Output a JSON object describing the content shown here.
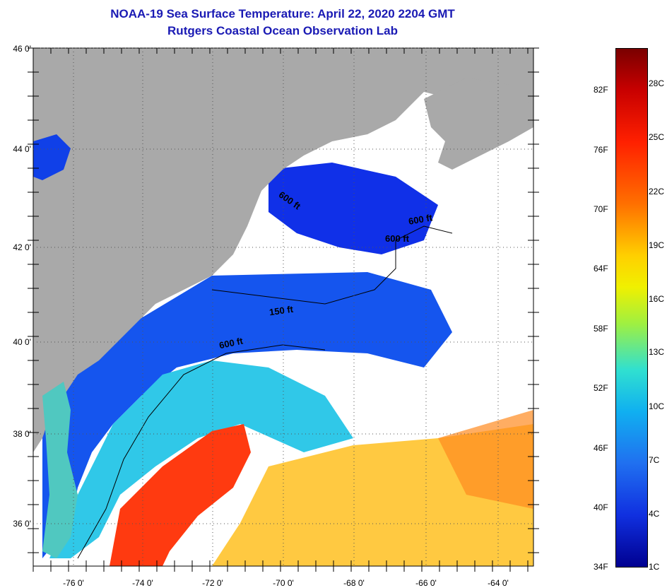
{
  "header": {
    "title": "NOAA-19 Sea Surface Temperature:  April 22, 2020 2204 GMT",
    "subtitle": "Rutgers Coastal Ocean Observation Lab"
  },
  "map": {
    "lat_labels": [
      "46 0'",
      "44 0'",
      "42 0'",
      "40 0'",
      "38 0'",
      "36 0'"
    ],
    "lon_labels": [
      "-76 0'",
      "-74 0'",
      "-72 0'",
      "-70 0'",
      "-68 0'",
      "-66 0'",
      "-64 0'"
    ],
    "isobath_labels": [
      "600 ft",
      "600 ft",
      "600 ft",
      "150 ft",
      "600 ft"
    ],
    "colors": {
      "land": "#a9a9a9",
      "cloud": "#ffffff",
      "cold": "#1040e8",
      "warm": "#ff3010"
    }
  },
  "colorbar": {
    "fahrenheit": [
      "82F",
      "76F",
      "70F",
      "64F",
      "58F",
      "52F",
      "46F",
      "40F",
      "34F"
    ],
    "celsius": [
      "28C",
      "25C",
      "22C",
      "19C",
      "16C",
      "13C",
      "10C",
      "7C",
      "4C",
      "1C"
    ]
  }
}
